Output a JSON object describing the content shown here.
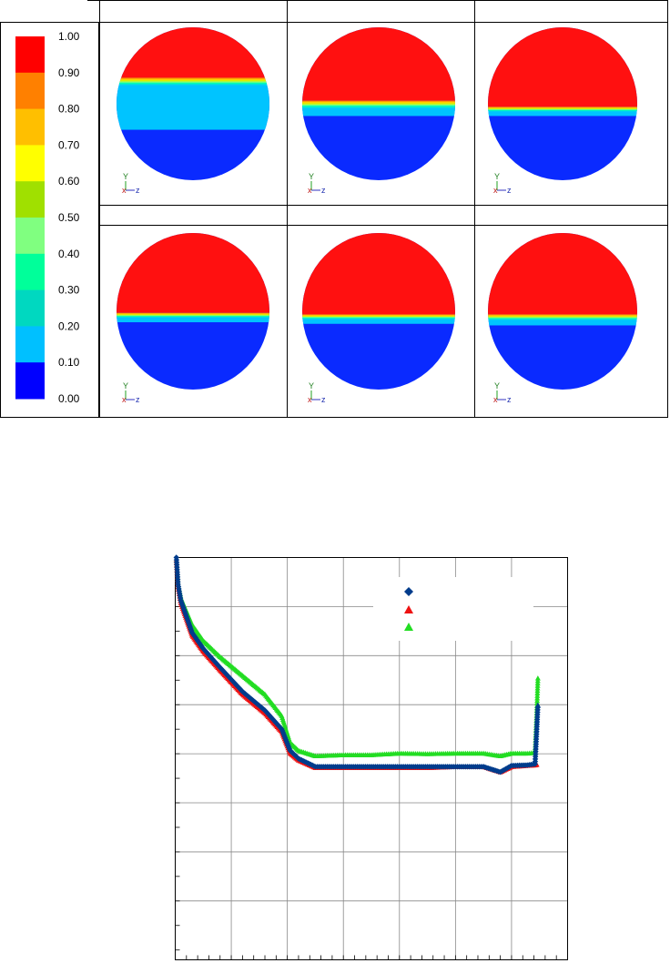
{
  "colorbar": {
    "colors": [
      "#0000ff",
      "#00b4ff",
      "#00e0d0",
      "#00f0a0",
      "#80ff80",
      "#a0f000",
      "#ffff00",
      "#ffd000",
      "#ffa000",
      "#ff7000",
      "#ff0000"
    ],
    "band_colors": [
      "#ff0000",
      "#ff8000",
      "#ffbf00",
      "#ffff00",
      "#a0e000",
      "#80ff80",
      "#00ff9a",
      "#00d8c0",
      "#00c0ff",
      "#0000ff"
    ],
    "labels": [
      "1.00",
      "0.90",
      "0.80",
      "0.70",
      "0.60",
      "0.50",
      "0.40",
      "0.30",
      "0.20",
      "0.10",
      "0.00"
    ]
  },
  "snapshots": [
    {
      "interface_top": 0.33,
      "interface_bottom": 0.67,
      "mid_color": "#00c4ff"
    },
    {
      "interface_top": 0.48,
      "interface_bottom": 0.58,
      "mid_color": "#00c4ff"
    },
    {
      "interface_top": 0.52,
      "interface_bottom": 0.58,
      "mid_color": "#00c4ff"
    },
    {
      "interface_top": 0.51,
      "interface_bottom": 0.57,
      "mid_color": "#00c4ff"
    },
    {
      "interface_top": 0.52,
      "interface_bottom": 0.58,
      "mid_color": "#00c4ff"
    },
    {
      "interface_top": 0.52,
      "interface_bottom": 0.59,
      "mid_color": "#00c4ff"
    }
  ],
  "axis_glyph": {
    "y": "Y",
    "z": "z",
    "x": "x"
  },
  "chart_data": {
    "type": "scatter",
    "xlim": [
      0,
      7
    ],
    "ylim": [
      0,
      7.5
    ],
    "grid": true,
    "legend_position": "top-right",
    "series": [
      {
        "marker": "diamond",
        "color": "#003c8c",
        "x": [
          0.02,
          0.05,
          0.1,
          0.2,
          0.3,
          0.5,
          0.8,
          1.2,
          1.6,
          1.9,
          2.05,
          2.2,
          2.5,
          3.0,
          3.5,
          4.0,
          4.5,
          5.0,
          5.5,
          5.8,
          6.0,
          6.28,
          6.42,
          6.45,
          6.47
        ],
        "y": [
          7.5,
          7.0,
          6.7,
          6.4,
          6.1,
          5.8,
          5.45,
          5.0,
          4.65,
          4.3,
          3.9,
          3.75,
          3.6,
          3.6,
          3.6,
          3.6,
          3.6,
          3.6,
          3.6,
          3.5,
          3.62,
          3.63,
          3.65,
          4.3,
          4.75
        ]
      },
      {
        "marker": "triangle",
        "color": "#ee1111",
        "x": [
          0.02,
          0.05,
          0.1,
          0.2,
          0.3,
          0.5,
          0.8,
          1.2,
          1.6,
          1.9,
          2.05,
          2.2,
          2.5,
          3.0,
          3.5,
          4.0,
          4.5,
          5.0,
          5.5,
          5.8,
          6.0,
          6.28,
          6.42,
          6.45
        ],
        "y": [
          7.45,
          6.95,
          6.65,
          6.35,
          6.05,
          5.75,
          5.4,
          4.95,
          4.6,
          4.25,
          3.85,
          3.72,
          3.58,
          3.58,
          3.58,
          3.58,
          3.58,
          3.6,
          3.6,
          3.5,
          3.6,
          3.62,
          3.63,
          3.64
        ]
      },
      {
        "marker": "triangle",
        "color": "#22dd22",
        "x": [
          0.02,
          0.05,
          0.1,
          0.2,
          0.3,
          0.5,
          0.8,
          1.2,
          1.6,
          1.9,
          2.05,
          2.2,
          2.5,
          3.0,
          3.5,
          4.0,
          4.5,
          5.0,
          5.5,
          5.8,
          6.0,
          6.28,
          6.42,
          6.45,
          6.47
        ],
        "y": [
          7.45,
          7.0,
          6.75,
          6.5,
          6.25,
          5.95,
          5.65,
          5.3,
          4.95,
          4.55,
          4.05,
          3.9,
          3.8,
          3.82,
          3.82,
          3.85,
          3.84,
          3.85,
          3.85,
          3.8,
          3.85,
          3.85,
          3.86,
          4.6,
          5.25
        ]
      }
    ]
  }
}
